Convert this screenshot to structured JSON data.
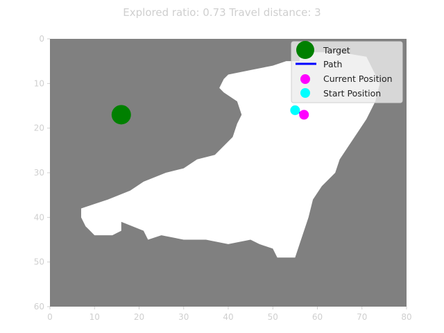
{
  "chart_data": {
    "type": "heatmap",
    "title": "Explored ratio: 0.73  Travel distance: 3",
    "xlim": [
      0,
      80
    ],
    "ylim": [
      60,
      0
    ],
    "x_ticks": [
      0,
      10,
      20,
      30,
      40,
      50,
      60,
      70,
      80
    ],
    "y_ticks": [
      0,
      10,
      20,
      30,
      40,
      50,
      60
    ],
    "grid": false,
    "legend_placement": "upper-right",
    "colors": {
      "unexplored": "#808080",
      "explored": "#ffffff",
      "target": "#008000",
      "path": "#0000ff",
      "current": "#ff00ff",
      "start": "#00ffff"
    },
    "explored_region_outline": [
      [
        16,
        41
      ],
      [
        16,
        43
      ],
      [
        14,
        44
      ],
      [
        10,
        44
      ],
      [
        8,
        42
      ],
      [
        7,
        40
      ],
      [
        7,
        38
      ],
      [
        10,
        37
      ],
      [
        13,
        36
      ],
      [
        18,
        34
      ],
      [
        21,
        32
      ],
      [
        26,
        30
      ],
      [
        30,
        29
      ],
      [
        33,
        27
      ],
      [
        37,
        26
      ],
      [
        39,
        24
      ],
      [
        41,
        22
      ],
      [
        42,
        19
      ],
      [
        43,
        17
      ],
      [
        42,
        14
      ],
      [
        39,
        12
      ],
      [
        38,
        11
      ],
      [
        39,
        9
      ],
      [
        40,
        8
      ],
      [
        45,
        7
      ],
      [
        50,
        6
      ],
      [
        53,
        5
      ],
      [
        56,
        5
      ],
      [
        56,
        3
      ],
      [
        65,
        3
      ],
      [
        71,
        4
      ],
      [
        73,
        8
      ],
      [
        74,
        10
      ],
      [
        73,
        14
      ],
      [
        71,
        18
      ],
      [
        69,
        21
      ],
      [
        67,
        24
      ],
      [
        65,
        27
      ],
      [
        64,
        30
      ],
      [
        61,
        33
      ],
      [
        59,
        36
      ],
      [
        58,
        40
      ],
      [
        57,
        43
      ],
      [
        56,
        46
      ],
      [
        55,
        49
      ],
      [
        51,
        49
      ],
      [
        50,
        47
      ],
      [
        47,
        46
      ],
      [
        45,
        45
      ],
      [
        40,
        46
      ],
      [
        35,
        45
      ],
      [
        30,
        45
      ],
      [
        25,
        44
      ],
      [
        22,
        45
      ],
      [
        21,
        43
      ]
    ],
    "series": [
      {
        "name": "Target",
        "marker": "circle",
        "points": [
          [
            16,
            17
          ]
        ]
      },
      {
        "name": "Path",
        "marker": "line",
        "points": [
          [
            55,
            16
          ],
          [
            57,
            17
          ]
        ]
      },
      {
        "name": "Current Position",
        "marker": "circle",
        "points": [
          [
            57,
            17
          ]
        ]
      },
      {
        "name": "Start Position",
        "marker": "circle",
        "points": [
          [
            55,
            16
          ]
        ]
      }
    ]
  }
}
